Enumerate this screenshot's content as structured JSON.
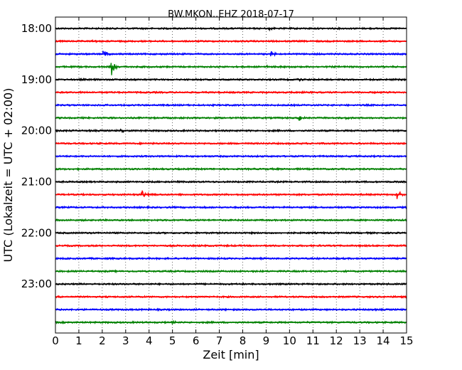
{
  "chart_data": {
    "type": "line",
    "title": "BW.MKON..EHZ 2018-07-17",
    "xlabel": "Zeit  [min]",
    "ylabel": "UTC (Lokalzeit = UTC + 02:00)",
    "xlim": [
      0,
      15
    ],
    "x_ticks": [
      "0",
      "1",
      "2",
      "3",
      "4",
      "5",
      "6",
      "7",
      "8",
      "9",
      "10",
      "11",
      "12",
      "13",
      "14",
      "15"
    ],
    "y_ticks": [
      "18:00",
      "19:00",
      "20:00",
      "21:00",
      "22:00",
      "23:00"
    ],
    "trace_start": "18:00",
    "trace_interval_minutes": 15,
    "trace_colors": [
      "#000000",
      "#ff0000",
      "#0000ff",
      "#008000"
    ],
    "grid": true,
    "series": [
      {
        "start": "18:00",
        "events": [
          {
            "t": 9.1,
            "amp": 2.2
          }
        ]
      },
      {
        "start": "18:15",
        "events": [
          {
            "t": 1.6,
            "amp": 3
          }
        ]
      },
      {
        "start": "18:30",
        "events": [
          {
            "t": 2.05,
            "amp": 7
          },
          {
            "t": 9.2,
            "amp": 4
          }
        ]
      },
      {
        "start": "18:45",
        "events": [
          {
            "t": 2.4,
            "amp": 11
          },
          {
            "t": 9.0,
            "amp": 2.5
          }
        ]
      },
      {
        "start": "19:00",
        "events": [
          {
            "t": 10.3,
            "amp": 4
          }
        ]
      },
      {
        "start": "19:15",
        "events": []
      },
      {
        "start": "19:30",
        "events": []
      },
      {
        "start": "19:45",
        "events": [
          {
            "t": 10.4,
            "amp": 6
          },
          {
            "t": 12.4,
            "amp": 2
          }
        ]
      },
      {
        "start": "20:00",
        "events": [
          {
            "t": 2.8,
            "amp": 2.5
          }
        ]
      },
      {
        "start": "20:15",
        "events": []
      },
      {
        "start": "20:30",
        "events": []
      },
      {
        "start": "20:45",
        "events": []
      },
      {
        "start": "21:00",
        "events": []
      },
      {
        "start": "21:15",
        "events": [
          {
            "t": 3.7,
            "amp": 7
          },
          {
            "t": 14.6,
            "amp": 8
          }
        ]
      },
      {
        "start": "21:30",
        "events": []
      },
      {
        "start": "21:45",
        "events": []
      },
      {
        "start": "22:00",
        "events": []
      },
      {
        "start": "22:15",
        "events": []
      },
      {
        "start": "22:30",
        "events": []
      },
      {
        "start": "22:45",
        "events": []
      },
      {
        "start": "23:00",
        "events": []
      },
      {
        "start": "23:15",
        "events": []
      },
      {
        "start": "23:30",
        "events": []
      },
      {
        "start": "23:45",
        "events": [
          {
            "t": 5.0,
            "amp": 3
          }
        ]
      }
    ]
  }
}
